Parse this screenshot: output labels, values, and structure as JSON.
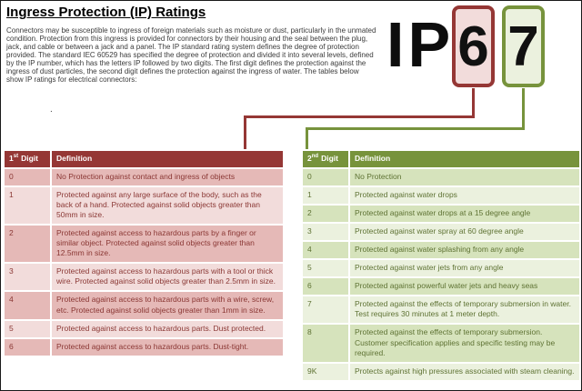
{
  "title": "Ingress Protection (IP) Ratings",
  "intro": "Connectors may be susceptible to ingress of foreign materials such as moisture or dust, particularly in the unmated condition.  Protection from this ingress is provided for connectors by their housing and the seal between the plug, jack, and cable or between a jack and a panel. The IP standard rating system defines the degree of protection provided. The standard IEC 60529 has specified the degree of protection and divided it into several levels, defined by the IP number, which has the letters IP followed by two digits. The first digit defines the protection against the ingress of dust particles, the second digit defines the protection against the ingress of water. The tables below show IP ratings for electrical connectors:",
  "stray_mark": ".",
  "ip_graphic": {
    "letters": "IP",
    "first_digit": "6",
    "second_digit": "7"
  },
  "colors": {
    "red_accent": "#953735",
    "red_row_dark": "#E5B9B7",
    "red_row_light": "#F2DCDB",
    "green_accent": "#77933C",
    "green_row_dark": "#D6E3BC",
    "green_row_light": "#EBF1DE"
  },
  "first_table": {
    "header": {
      "num": "1",
      "sup": "st",
      "word": "Digit",
      "definition": "Definition"
    },
    "rows": [
      {
        "digit": "0",
        "definition": "No Protection against contact and ingress of objects"
      },
      {
        "digit": "1",
        "definition": "Protected against any large surface of the body, such as the back of a hand.  Protected against solid objects greater than 50mm in size."
      },
      {
        "digit": "2",
        "definition": "Protected against access to hazardous parts by a finger or similar object.  Protected against solid objects greater than 12.5mm in size."
      },
      {
        "digit": "3",
        "definition": "Protected against access to hazardous parts with a tool or thick wire.  Protected against solid objects greater than 2.5mm in size."
      },
      {
        "digit": "4",
        "definition": "Protected against access to hazardous parts with a wire, screw, etc.  Protected against solid objects greater than 1mm in size."
      },
      {
        "digit": "5",
        "definition": "Protected against access to hazardous parts.  Dust protected."
      },
      {
        "digit": "6",
        "definition": "Protected against access to hazardous parts.  Dust-tight."
      }
    ]
  },
  "second_table": {
    "header": {
      "num": "2",
      "sup": "nd",
      "word": "Digit",
      "definition": "Definition"
    },
    "rows": [
      {
        "digit": "0",
        "definition": "No Protection"
      },
      {
        "digit": "1",
        "definition": "Protected against water drops"
      },
      {
        "digit": "2",
        "definition": "Protected against water drops at a 15 degree angle"
      },
      {
        "digit": "3",
        "definition": "Protected against water spray at 60 degree angle"
      },
      {
        "digit": "4",
        "definition": "Protected against water splashing from any angle"
      },
      {
        "digit": "5",
        "definition": "Protected against water jets from any angle"
      },
      {
        "digit": "6",
        "definition": "Protected against powerful water jets and heavy seas"
      },
      {
        "digit": "7",
        "definition": "Protected against the effects of temporary submersion in water.  Test requires 30 minutes at 1 meter depth."
      },
      {
        "digit": "8",
        "definition": "Protected against the effects of temporary submersion. Customer specification applies and specific testing may be required."
      },
      {
        "digit": "9K",
        "definition": "Protects against high pressures associated with steam cleaning."
      }
    ]
  }
}
